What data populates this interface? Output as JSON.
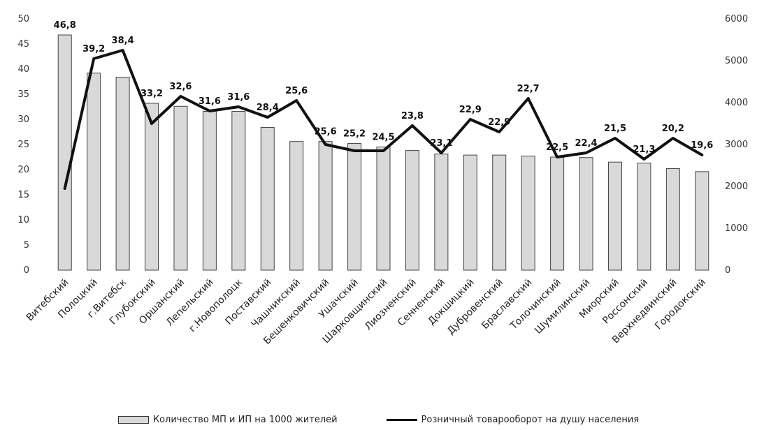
{
  "chart_data": {
    "type": "bar",
    "categories": [
      "Витебский",
      "Полоцкий",
      "г.Витебск",
      "Глубокский",
      "Оршанский",
      "Лепельский",
      "г.Новополоцк",
      "Поставский",
      "Чашникский",
      "Бешенковичский",
      "Ушачский",
      "Шарковщинский",
      "Лиозненский",
      "Сенненский",
      "Докшицкий",
      "Дубровенский",
      "Браславский",
      "Толочинский",
      "Шумилинский",
      "Миорский",
      "Россонский",
      "Верхнедвинский",
      "Городокский"
    ],
    "series": [
      {
        "name": "Количество МП и ИП на 1000 жителей",
        "chart": "bar",
        "axis": "left",
        "color": "#d9d9d9",
        "values": [
          46.8,
          39.2,
          38.4,
          33.2,
          32.6,
          31.6,
          31.6,
          28.4,
          25.6,
          25.6,
          25.2,
          24.5,
          23.8,
          23.1,
          22.9,
          22.9,
          22.7,
          22.5,
          22.4,
          21.5,
          21.3,
          20.2,
          19.6
        ],
        "labels": [
          "46,8",
          "39,2",
          "38,4",
          "33,2",
          "32,6",
          "31,6",
          "31,6",
          "28,4",
          "25,6",
          "25,6",
          "25,2",
          "24,5",
          "23,8",
          "23,1",
          "22,9",
          "22,9",
          "22,7",
          "22,5",
          "22,4",
          "21,5",
          "21,3",
          "20,2",
          "19,6"
        ]
      },
      {
        "name": "Розничный товарооборот на душу населения",
        "chart": "line",
        "axis": "right",
        "color": "#111111",
        "values": [
          1950,
          5050,
          5250,
          3500,
          4150,
          3800,
          3900,
          3650,
          4050,
          3000,
          2850,
          2850,
          3450,
          2800,
          3600,
          3300,
          4100,
          2700,
          2800,
          3150,
          2650,
          3150,
          2750
        ]
      }
    ],
    "y_left": {
      "ylim": [
        0,
        50
      ],
      "ticks": [
        "0",
        "5",
        "10",
        "15",
        "20",
        "25",
        "30",
        "35",
        "40",
        "45",
        "50"
      ]
    },
    "y_right": {
      "ylim": [
        0,
        6000
      ],
      "ticks": [
        "0",
        "1000",
        "2000",
        "3000",
        "4000",
        "5000",
        "6000"
      ]
    },
    "grid": false,
    "legend": "bottom"
  }
}
